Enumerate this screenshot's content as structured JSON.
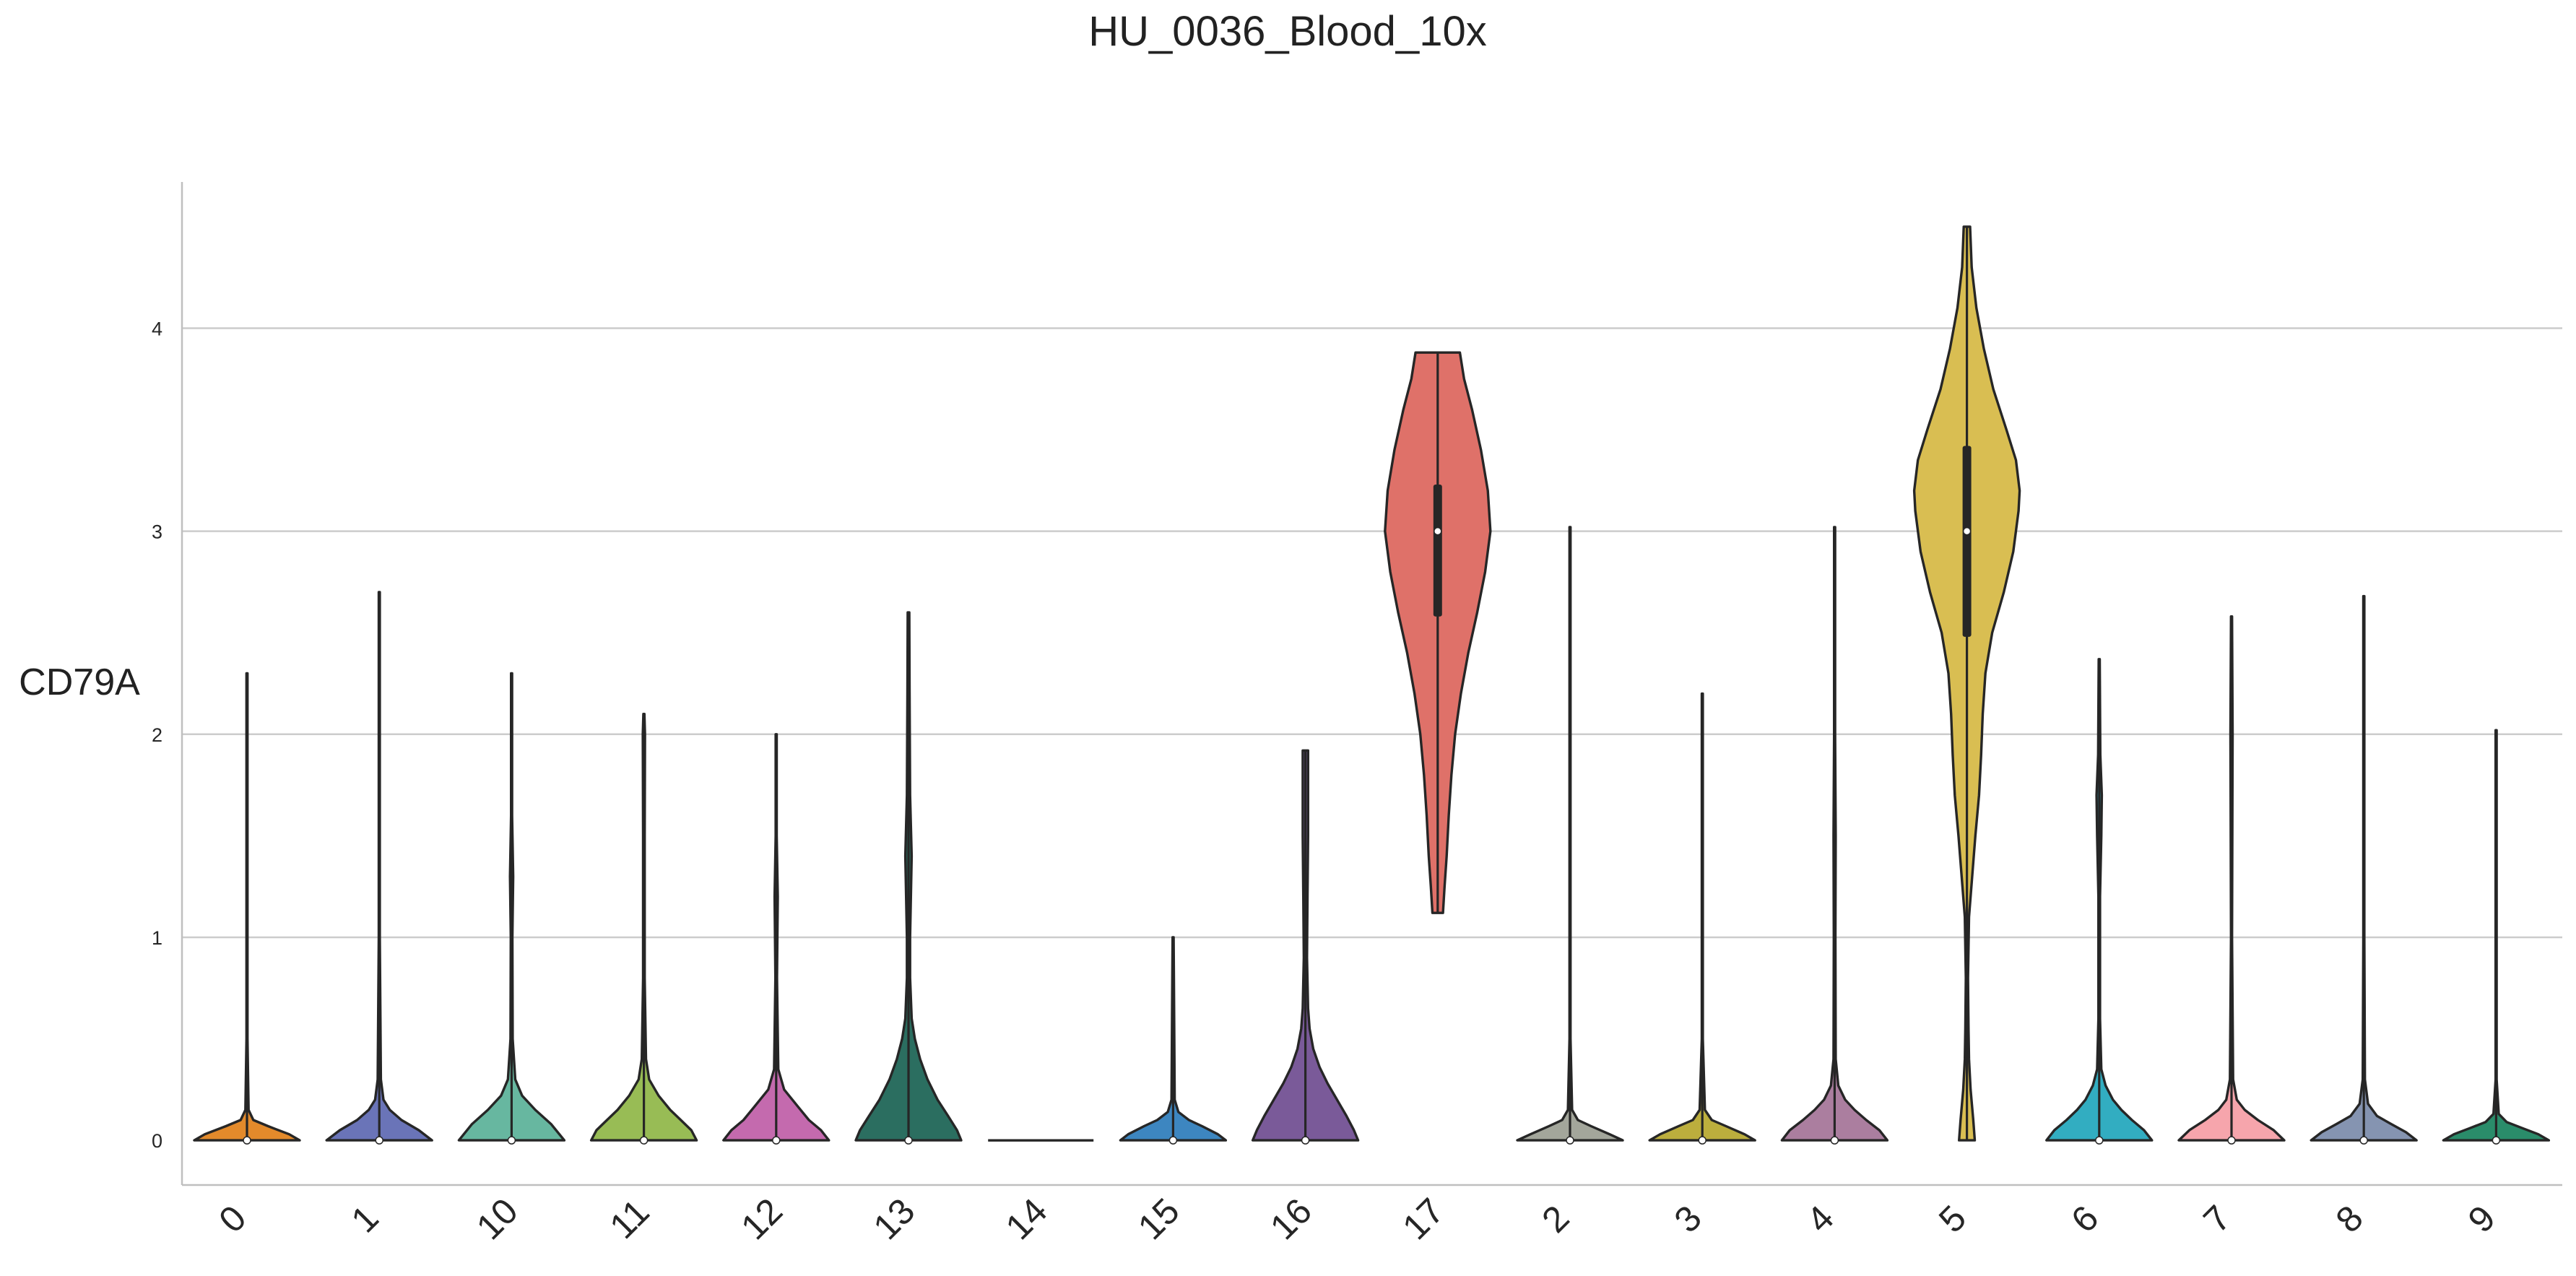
{
  "chart_data": {
    "type": "violin",
    "title": "HU_0036_Blood_10x",
    "ylabel": "CD79A",
    "xlabel": "",
    "ylim": [
      -0.22,
      4.72
    ],
    "yticks": [
      0,
      1,
      2,
      3,
      4
    ],
    "grid": true,
    "categories": [
      "0",
      "1",
      "10",
      "11",
      "12",
      "13",
      "14",
      "15",
      "16",
      "17",
      "2",
      "3",
      "4",
      "5",
      "6",
      "7",
      "8",
      "9"
    ],
    "colors": [
      "#e38a2b",
      "#6a74b8",
      "#67b7a0",
      "#98bc55",
      "#c46aae",
      "#2b6e60",
      "#555555",
      "#3d86c0",
      "#7a5a99",
      "#df7169",
      "#a3a69b",
      "#bcae3d",
      "#ab7e9f",
      "#d9be52",
      "#32adc1",
      "#f6a5ac",
      "#8594b1",
      "#2a8c6a"
    ],
    "series": [
      {
        "min": 0,
        "max": 2.3,
        "q1": 0,
        "median": 0,
        "q3": 0,
        "density": [
          [
            0,
            1.0
          ],
          [
            0.03,
            0.8
          ],
          [
            0.07,
            0.4
          ],
          [
            0.1,
            0.12
          ],
          [
            0.15,
            0.03
          ],
          [
            0.5,
            0.01
          ],
          [
            1.0,
            0.01
          ],
          [
            2.3,
            0.01
          ]
        ]
      },
      {
        "min": 0,
        "max": 2.7,
        "q1": 0,
        "median": 0,
        "q3": 0,
        "density": [
          [
            0,
            1.0
          ],
          [
            0.05,
            0.75
          ],
          [
            0.1,
            0.42
          ],
          [
            0.15,
            0.2
          ],
          [
            0.2,
            0.08
          ],
          [
            0.3,
            0.03
          ],
          [
            1.0,
            0.01
          ],
          [
            2.7,
            0.01
          ]
        ]
      },
      {
        "min": 0,
        "max": 2.3,
        "q1": 0,
        "median": 0,
        "q3": 0,
        "density": [
          [
            0,
            1.0
          ],
          [
            0.08,
            0.75
          ],
          [
            0.15,
            0.45
          ],
          [
            0.22,
            0.2
          ],
          [
            0.3,
            0.07
          ],
          [
            0.5,
            0.02
          ],
          [
            1.0,
            0.015
          ],
          [
            1.3,
            0.03
          ],
          [
            1.6,
            0.01
          ],
          [
            2.3,
            0.01
          ]
        ]
      },
      {
        "min": 0,
        "max": 2.1,
        "q1": 0,
        "median": 0,
        "q3": 0,
        "density": [
          [
            0,
            1.0
          ],
          [
            0.05,
            0.9
          ],
          [
            0.1,
            0.7
          ],
          [
            0.15,
            0.5
          ],
          [
            0.22,
            0.28
          ],
          [
            0.3,
            0.1
          ],
          [
            0.4,
            0.04
          ],
          [
            0.8,
            0.015
          ],
          [
            1.5,
            0.015
          ],
          [
            2.0,
            0.02
          ],
          [
            2.1,
            0.01
          ]
        ]
      },
      {
        "min": 0,
        "max": 2.0,
        "q1": 0,
        "median": 0,
        "q3": 0,
        "density": [
          [
            0,
            1.0
          ],
          [
            0.05,
            0.85
          ],
          [
            0.1,
            0.62
          ],
          [
            0.17,
            0.4
          ],
          [
            0.25,
            0.15
          ],
          [
            0.35,
            0.04
          ],
          [
            0.8,
            0.015
          ],
          [
            1.2,
            0.03
          ],
          [
            1.5,
            0.01
          ],
          [
            2.0,
            0.01
          ]
        ]
      },
      {
        "min": 0,
        "max": 2.6,
        "q1": 0,
        "median": 0,
        "q3": 0,
        "density": [
          [
            0,
            1.0
          ],
          [
            0.05,
            0.92
          ],
          [
            0.12,
            0.75
          ],
          [
            0.2,
            0.55
          ],
          [
            0.3,
            0.36
          ],
          [
            0.4,
            0.22
          ],
          [
            0.5,
            0.12
          ],
          [
            0.6,
            0.06
          ],
          [
            0.8,
            0.03
          ],
          [
            1.0,
            0.03
          ],
          [
            1.4,
            0.06
          ],
          [
            1.7,
            0.03
          ],
          [
            2.2,
            0.02
          ],
          [
            2.6,
            0.015
          ]
        ]
      },
      {
        "min": 0,
        "max": 0,
        "q1": 0,
        "median": 0,
        "q3": 0,
        "density": [
          [
            0,
            1.0
          ]
        ]
      },
      {
        "min": 0,
        "max": 1.0,
        "q1": 0,
        "median": 0,
        "q3": 0,
        "density": [
          [
            0,
            1.0
          ],
          [
            0.03,
            0.85
          ],
          [
            0.07,
            0.55
          ],
          [
            0.1,
            0.3
          ],
          [
            0.14,
            0.1
          ],
          [
            0.2,
            0.03
          ],
          [
            0.8,
            0.015
          ],
          [
            1.0,
            0.01
          ]
        ]
      },
      {
        "min": 0,
        "max": 1.92,
        "q1": 0,
        "median": 0,
        "q3": 0,
        "density": [
          [
            0,
            1.0
          ],
          [
            0.05,
            0.92
          ],
          [
            0.12,
            0.78
          ],
          [
            0.2,
            0.6
          ],
          [
            0.28,
            0.42
          ],
          [
            0.36,
            0.27
          ],
          [
            0.45,
            0.15
          ],
          [
            0.55,
            0.08
          ],
          [
            0.65,
            0.05
          ],
          [
            0.9,
            0.03
          ],
          [
            1.2,
            0.04
          ],
          [
            1.5,
            0.05
          ],
          [
            1.7,
            0.05
          ],
          [
            1.92,
            0.05
          ]
        ]
      },
      {
        "min": 1.12,
        "max": 3.88,
        "q1": 2.58,
        "median": 3.0,
        "q3": 3.23,
        "density": [
          [
            1.12,
            0.1
          ],
          [
            1.25,
            0.13
          ],
          [
            1.4,
            0.17
          ],
          [
            1.6,
            0.21
          ],
          [
            1.8,
            0.26
          ],
          [
            2.0,
            0.33
          ],
          [
            2.2,
            0.44
          ],
          [
            2.4,
            0.58
          ],
          [
            2.6,
            0.75
          ],
          [
            2.8,
            0.9
          ],
          [
            3.0,
            1.0
          ],
          [
            3.2,
            0.95
          ],
          [
            3.4,
            0.82
          ],
          [
            3.6,
            0.65
          ],
          [
            3.75,
            0.5
          ],
          [
            3.88,
            0.42
          ]
        ]
      },
      {
        "min": 0,
        "max": 3.02,
        "q1": 0,
        "median": 0,
        "q3": 0,
        "density": [
          [
            0,
            1.0
          ],
          [
            0.03,
            0.75
          ],
          [
            0.07,
            0.4
          ],
          [
            0.1,
            0.15
          ],
          [
            0.15,
            0.04
          ],
          [
            0.5,
            0.01
          ],
          [
            3.02,
            0.01
          ]
        ]
      },
      {
        "min": 0,
        "max": 2.2,
        "q1": 0,
        "median": 0,
        "q3": 0,
        "density": [
          [
            0,
            1.0
          ],
          [
            0.03,
            0.8
          ],
          [
            0.07,
            0.45
          ],
          [
            0.1,
            0.18
          ],
          [
            0.15,
            0.05
          ],
          [
            0.5,
            0.01
          ],
          [
            2.2,
            0.01
          ]
        ]
      },
      {
        "min": 0,
        "max": 3.02,
        "q1": 0,
        "median": 0,
        "q3": 0,
        "density": [
          [
            0,
            1.0
          ],
          [
            0.05,
            0.85
          ],
          [
            0.1,
            0.6
          ],
          [
            0.15,
            0.38
          ],
          [
            0.2,
            0.2
          ],
          [
            0.27,
            0.07
          ],
          [
            0.4,
            0.02
          ],
          [
            1.0,
            0.015
          ],
          [
            1.5,
            0.02
          ],
          [
            2.0,
            0.01
          ],
          [
            3.02,
            0.01
          ]
        ]
      },
      {
        "min": 0,
        "max": 4.5,
        "q1": 2.48,
        "median": 3.0,
        "q3": 3.42,
        "density": [
          [
            0,
            0.15
          ],
          [
            0.1,
            0.12
          ],
          [
            0.25,
            0.07
          ],
          [
            0.4,
            0.04
          ],
          [
            0.55,
            0.03
          ],
          [
            0.8,
            0.02
          ],
          [
            1.1,
            0.04
          ],
          [
            1.3,
            0.1
          ],
          [
            1.5,
            0.16
          ],
          [
            1.7,
            0.23
          ],
          [
            1.9,
            0.27
          ],
          [
            2.1,
            0.3
          ],
          [
            2.3,
            0.35
          ],
          [
            2.5,
            0.48
          ],
          [
            2.7,
            0.7
          ],
          [
            2.9,
            0.88
          ],
          [
            3.1,
            0.98
          ],
          [
            3.2,
            1.0
          ],
          [
            3.35,
            0.93
          ],
          [
            3.5,
            0.75
          ],
          [
            3.7,
            0.5
          ],
          [
            3.9,
            0.32
          ],
          [
            4.1,
            0.18
          ],
          [
            4.3,
            0.09
          ],
          [
            4.5,
            0.06
          ]
        ]
      },
      {
        "min": 0,
        "max": 2.37,
        "q1": 0,
        "median": 0,
        "q3": 0,
        "density": [
          [
            0,
            1.0
          ],
          [
            0.05,
            0.85
          ],
          [
            0.1,
            0.62
          ],
          [
            0.15,
            0.42
          ],
          [
            0.2,
            0.26
          ],
          [
            0.27,
            0.12
          ],
          [
            0.35,
            0.04
          ],
          [
            0.6,
            0.015
          ],
          [
            1.2,
            0.015
          ],
          [
            1.5,
            0.04
          ],
          [
            1.7,
            0.05
          ],
          [
            1.9,
            0.02
          ],
          [
            2.37,
            0.01
          ]
        ]
      },
      {
        "min": 0,
        "max": 2.58,
        "q1": 0,
        "median": 0,
        "q3": 0,
        "density": [
          [
            0,
            1.0
          ],
          [
            0.05,
            0.8
          ],
          [
            0.1,
            0.5
          ],
          [
            0.15,
            0.25
          ],
          [
            0.2,
            0.1
          ],
          [
            0.3,
            0.03
          ],
          [
            1.0,
            0.01
          ],
          [
            2.0,
            0.02
          ],
          [
            2.58,
            0.01
          ]
        ]
      },
      {
        "min": 0,
        "max": 2.68,
        "q1": 0,
        "median": 0,
        "q3": 0,
        "density": [
          [
            0,
            1.0
          ],
          [
            0.04,
            0.8
          ],
          [
            0.08,
            0.52
          ],
          [
            0.12,
            0.25
          ],
          [
            0.18,
            0.08
          ],
          [
            0.3,
            0.02
          ],
          [
            1.0,
            0.01
          ],
          [
            2.68,
            0.01
          ]
        ]
      },
      {
        "min": 0,
        "max": 2.02,
        "q1": 0,
        "median": 0,
        "q3": 0,
        "density": [
          [
            0,
            1.0
          ],
          [
            0.03,
            0.8
          ],
          [
            0.06,
            0.5
          ],
          [
            0.09,
            0.2
          ],
          [
            0.13,
            0.05
          ],
          [
            0.3,
            0.01
          ],
          [
            2.02,
            0.01
          ]
        ]
      }
    ]
  }
}
